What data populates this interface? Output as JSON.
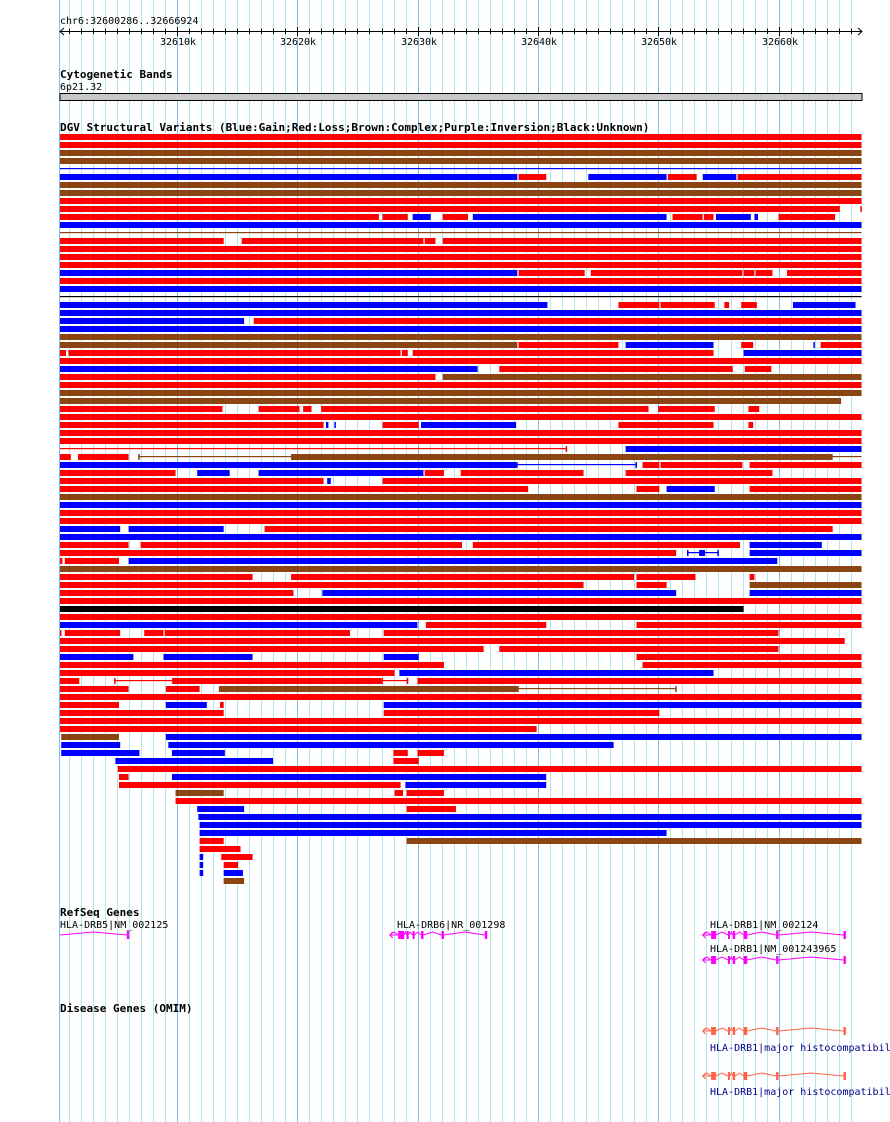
{
  "region": {
    "label": "chr6:32600286..32666924",
    "start_bp": 32600286,
    "end_bp": 32666924,
    "length_kb": 66.638
  },
  "ruler": {
    "labels": [
      {
        "kb": 32610,
        "text": "32610k"
      },
      {
        "kb": 32620,
        "text": "32620k"
      },
      {
        "kb": 32630,
        "text": "32630k"
      },
      {
        "kb": 32640,
        "text": "32640k"
      },
      {
        "kb": 32650,
        "text": "32650k"
      },
      {
        "kb": 32660,
        "text": "32660k"
      }
    ]
  },
  "cytoband": {
    "title": "Cytogenetic Bands",
    "band": "6p21.32",
    "color": "#c8c8c8"
  },
  "sv_track": {
    "title": "DGV Structural Variants (Blue:Gain;Red:Loss;Brown:Complex;Purple:Inversion;Black:Unknown)",
    "units": "kb offset from region start",
    "colors": {
      "L": "#ff0000",
      "G": "#0000ff",
      "C": "#8b4513",
      "U": "#000000",
      "I": "#800080"
    },
    "rows": [
      [
        [
          0,
          66.6,
          "L"
        ]
      ],
      [
        [
          0,
          66.6,
          "L"
        ]
      ],
      [
        [
          0,
          66.6,
          "C"
        ]
      ],
      [
        [
          0,
          66.6,
          "C"
        ]
      ],
      [
        [
          0,
          66.6,
          "Gl"
        ]
      ],
      [
        [
          0,
          38.0,
          "G"
        ],
        [
          38.1,
          40.4,
          "L"
        ],
        [
          43.9,
          50.4,
          "G"
        ],
        [
          50.5,
          52.9,
          "L"
        ],
        [
          53.4,
          56.2,
          "G"
        ],
        [
          56.3,
          66.6,
          "L"
        ]
      ],
      [
        [
          0,
          66.6,
          "C"
        ]
      ],
      [
        [
          0,
          66.6,
          "C"
        ]
      ],
      [
        [
          0,
          66.6,
          "L"
        ]
      ],
      [
        [
          0,
          64.8,
          "L"
        ],
        [
          66.5,
          66.6,
          "L"
        ]
      ],
      [
        [
          0,
          26.5,
          "L"
        ],
        [
          26.8,
          28.9,
          "L"
        ],
        [
          29.3,
          30.8,
          "G"
        ],
        [
          31.8,
          33.9,
          "L"
        ],
        [
          34.3,
          50.4,
          "G"
        ],
        [
          50.9,
          53.4,
          "L"
        ],
        [
          53.5,
          54.3,
          "L"
        ],
        [
          54.5,
          57.4,
          "G"
        ],
        [
          57.7,
          58.0,
          "G"
        ],
        [
          59.7,
          64.4,
          "L"
        ]
      ],
      [
        [
          0,
          66.6,
          "G"
        ]
      ],
      [
        [
          0,
          66.6,
          "Cl"
        ]
      ],
      [
        [
          0,
          13.6,
          "L"
        ],
        [
          15.1,
          30.2,
          "L"
        ],
        [
          30.3,
          31.2,
          "L"
        ],
        [
          31.8,
          66.6,
          "L"
        ]
      ],
      [
        [
          0,
          66.6,
          "L"
        ]
      ],
      [
        [
          0,
          66.6,
          "L"
        ]
      ],
      [
        [
          0,
          66.6,
          "L"
        ]
      ],
      [
        [
          0,
          38.0,
          "G"
        ],
        [
          38.1,
          43.6,
          "L"
        ],
        [
          44.1,
          56.7,
          "L"
        ],
        [
          56.8,
          57.7,
          "L"
        ],
        [
          57.8,
          59.2,
          "L"
        ],
        [
          60.4,
          66.6,
          "L"
        ]
      ],
      [
        [
          0,
          66.6,
          "L"
        ]
      ],
      [
        [
          0,
          66.6,
          "G"
        ]
      ],
      [
        [
          0,
          66.6,
          "Ul"
        ]
      ],
      [
        [
          0,
          40.5,
          "G"
        ],
        [
          46.4,
          49.8,
          "L"
        ],
        [
          49.9,
          54.4,
          "L"
        ],
        [
          55.2,
          55.6,
          "L"
        ],
        [
          56.6,
          57.9,
          "L"
        ],
        [
          60.9,
          66.1,
          "G"
        ]
      ],
      [
        [
          0,
          66.6,
          "G"
        ]
      ],
      [
        [
          0,
          15.3,
          "G"
        ],
        [
          16.1,
          66.6,
          "L"
        ]
      ],
      [
        [
          0,
          66.6,
          "G"
        ]
      ],
      [
        [
          0,
          66.6,
          "C"
        ]
      ],
      [
        [
          0,
          38.0,
          "C"
        ],
        [
          38.1,
          46.4,
          "L"
        ],
        [
          47.0,
          54.3,
          "G"
        ],
        [
          56.6,
          57.6,
          "L"
        ],
        [
          62.6,
          62.7,
          "G"
        ],
        [
          63.2,
          66.6,
          "L"
        ]
      ],
      [
        [
          0,
          0.5,
          "L"
        ],
        [
          0.7,
          28.3,
          "L"
        ],
        [
          28.4,
          28.9,
          "L"
        ],
        [
          29.3,
          54.3,
          "L"
        ],
        [
          56.8,
          66.6,
          "G"
        ]
      ],
      [
        [
          0,
          66.6,
          "L"
        ]
      ],
      [
        [
          0,
          34.7,
          "G"
        ],
        [
          36.5,
          55.9,
          "L"
        ],
        [
          56.9,
          59.1,
          "L"
        ]
      ],
      [
        [
          0,
          31.2,
          "L"
        ],
        [
          31.8,
          66.6,
          "C"
        ]
      ],
      [
        [
          0,
          66.6,
          "L"
        ]
      ],
      [
        [
          0,
          66.6,
          "C"
        ]
      ],
      [
        [
          0,
          64.9,
          "C"
        ]
      ],
      [
        [
          0,
          13.5,
          "L"
        ],
        [
          16.5,
          19.9,
          "L"
        ],
        [
          20.2,
          20.9,
          "L"
        ],
        [
          21.7,
          48.9,
          "L"
        ],
        [
          49.7,
          54.4,
          "L"
        ],
        [
          57.2,
          58.1,
          "L"
        ]
      ],
      [
        [
          0,
          66.6,
          "L"
        ]
      ],
      [
        [
          0,
          21.9,
          "L"
        ],
        [
          22.1,
          22.3,
          "G"
        ],
        [
          22.8,
          22.9,
          "G"
        ],
        [
          26.8,
          29.8,
          "L"
        ],
        [
          30.0,
          37.9,
          "G"
        ],
        [
          46.4,
          54.3,
          "L"
        ],
        [
          57.2,
          57.6,
          "L"
        ]
      ],
      [
        [
          0,
          66.6,
          "L"
        ]
      ],
      [
        [
          0,
          66.6,
          "L"
        ]
      ],
      [
        [
          0,
          42.1,
          "Ll"
        ],
        [
          47.0,
          66.6,
          "G"
        ]
      ],
      [
        [
          0,
          0.9,
          "L"
        ],
        [
          1.5,
          5.7,
          "L"
        ],
        [
          6.5,
          66.6,
          "Cl"
        ],
        [
          19.2,
          64.2,
          "C"
        ]
      ],
      [
        [
          0,
          37.9,
          "G"
        ],
        [
          37.9,
          47.9,
          "Gl"
        ],
        [
          48.4,
          49.8,
          "L"
        ],
        [
          49.9,
          56.7,
          "L"
        ],
        [
          57.3,
          66.6,
          "L"
        ]
      ],
      [
        [
          0,
          9.6,
          "L"
        ],
        [
          11.4,
          14.1,
          "G"
        ],
        [
          16.5,
          30.2,
          "G"
        ],
        [
          30.3,
          31.9,
          "L"
        ],
        [
          33.3,
          43.5,
          "L"
        ],
        [
          47.0,
          59.2,
          "L"
        ]
      ],
      [
        [
          0,
          21.9,
          "L"
        ],
        [
          22.2,
          22.5,
          "G"
        ],
        [
          26.8,
          66.6,
          "L"
        ]
      ],
      [
        [
          0,
          38.9,
          "L"
        ],
        [
          47.9,
          49.8,
          "L"
        ],
        [
          50.4,
          54.4,
          "G"
        ],
        [
          57.3,
          66.6,
          "L"
        ]
      ],
      [
        [
          0,
          66.6,
          "C"
        ]
      ],
      [
        [
          0,
          66.6,
          "G"
        ]
      ],
      [
        [
          0,
          66.6,
          "L"
        ]
      ],
      [
        [
          0,
          66.6,
          "L"
        ]
      ],
      [
        [
          0,
          5.0,
          "G"
        ],
        [
          5.7,
          13.6,
          "G"
        ],
        [
          17.0,
          64.2,
          "L"
        ]
      ],
      [
        [
          0,
          66.6,
          "G"
        ]
      ],
      [
        [
          0,
          5.7,
          "L"
        ],
        [
          6.7,
          33.4,
          "L"
        ],
        [
          34.3,
          56.5,
          "L"
        ],
        [
          57.3,
          63.3,
          "G"
        ]
      ],
      [
        [
          0,
          51.2,
          "L"
        ],
        [
          52.1,
          54.7,
          "Gl"
        ],
        [
          53.1,
          53.6,
          "G"
        ],
        [
          57.3,
          66.6,
          "G"
        ]
      ],
      [
        [
          0,
          0.2,
          "L"
        ],
        [
          0.4,
          4.9,
          "L"
        ],
        [
          5.7,
          59.6,
          "G"
        ]
      ],
      [
        [
          0,
          66.6,
          "C"
        ]
      ],
      [
        [
          0,
          16.0,
          "L"
        ],
        [
          19.2,
          47.7,
          "L"
        ],
        [
          47.9,
          52.8,
          "L"
        ],
        [
          57.3,
          57.7,
          "L"
        ]
      ],
      [
        [
          0,
          43.5,
          "L"
        ],
        [
          47.9,
          50.4,
          "L"
        ],
        [
          57.3,
          66.6,
          "C"
        ]
      ],
      [
        [
          0,
          19.4,
          "L"
        ],
        [
          21.8,
          51.2,
          "G"
        ],
        [
          57.3,
          66.6,
          "G"
        ]
      ],
      [
        [
          0,
          66.6,
          "L"
        ]
      ],
      [
        [
          0,
          56.8,
          "U"
        ]
      ],
      [
        [
          0,
          66.6,
          "L"
        ]
      ],
      [
        [
          0,
          29.7,
          "G"
        ],
        [
          30.4,
          40.4,
          "L"
        ],
        [
          47.9,
          66.6,
          "L"
        ]
      ],
      [
        [
          0,
          0.1,
          "L"
        ],
        [
          0.4,
          5.0,
          "L"
        ],
        [
          7.0,
          8.6,
          "L"
        ],
        [
          8.7,
          24.1,
          "L"
        ],
        [
          26.9,
          59.7,
          "L"
        ]
      ],
      [
        [
          0,
          65.2,
          "L"
        ]
      ],
      [
        [
          0,
          35.2,
          "L"
        ],
        [
          36.5,
          59.7,
          "L"
        ]
      ],
      [
        [
          0,
          6.1,
          "G"
        ],
        [
          8.6,
          16.0,
          "G"
        ],
        [
          26.9,
          29.8,
          "G"
        ],
        [
          47.9,
          66.6,
          "L"
        ]
      ],
      [
        [
          0,
          31.9,
          "L"
        ],
        [
          48.4,
          66.6,
          "L"
        ]
      ],
      [
        [
          0,
          27.8,
          "L"
        ],
        [
          28.2,
          54.3,
          "G"
        ]
      ],
      [
        [
          0,
          1.6,
          "L"
        ],
        [
          4.5,
          9.4,
          "Ll"
        ],
        [
          9.4,
          26.7,
          "L"
        ],
        [
          26.7,
          28.9,
          "Ll"
        ],
        [
          29.7,
          66.6,
          "L"
        ]
      ],
      [
        [
          0,
          5.7,
          "L"
        ],
        [
          8.8,
          11.6,
          "L"
        ],
        [
          13.2,
          38.0,
          "C"
        ],
        [
          38.0,
          51.2,
          "Cl"
        ]
      ],
      [
        [
          0,
          66.6,
          "L"
        ]
      ],
      [
        [
          0,
          4.9,
          "L"
        ],
        [
          8.8,
          12.2,
          "G"
        ],
        [
          13.3,
          13.6,
          "L"
        ],
        [
          26.9,
          66.6,
          "G"
        ]
      ],
      [
        [
          0,
          13.6,
          "L"
        ],
        [
          26.9,
          49.8,
          "L"
        ]
      ],
      [
        [
          0,
          66.6,
          "L"
        ]
      ],
      [
        [
          0,
          39.6,
          "L"
        ]
      ],
      [
        [
          0.1,
          4.9,
          "C"
        ],
        [
          8.8,
          66.6,
          "G"
        ]
      ],
      [
        [
          0.1,
          5.0,
          "G"
        ],
        [
          9.0,
          46.0,
          "G"
        ]
      ],
      [
        [
          0.1,
          6.6,
          "G"
        ],
        [
          9.3,
          13.7,
          "G"
        ],
        [
          27.7,
          28.9,
          "L"
        ],
        [
          29.7,
          31.9,
          "L"
        ]
      ],
      [
        [
          4.6,
          17.7,
          "G"
        ],
        [
          27.7,
          29.8,
          "L"
        ]
      ],
      [
        [
          4.8,
          66.6,
          "L"
        ]
      ],
      [
        [
          4.9,
          5.7,
          "L"
        ],
        [
          9.3,
          40.4,
          "G"
        ]
      ],
      [
        [
          4.9,
          28.3,
          "L"
        ],
        [
          28.7,
          40.4,
          "G"
        ]
      ],
      [
        [
          9.6,
          13.6,
          "C"
        ],
        [
          27.8,
          28.5,
          "L"
        ],
        [
          28.8,
          31.9,
          "L"
        ]
      ],
      [
        [
          9.6,
          66.6,
          "L"
        ]
      ],
      [
        [
          11.4,
          15.3,
          "G"
        ],
        [
          28.8,
          32.9,
          "L"
        ]
      ],
      [
        [
          11.5,
          66.6,
          "G"
        ]
      ],
      [
        [
          11.6,
          66.6,
          "G"
        ]
      ],
      [
        [
          11.6,
          50.4,
          "G"
        ]
      ],
      [
        [
          11.6,
          13.6,
          "L"
        ],
        [
          28.8,
          66.6,
          "C"
        ]
      ],
      [
        [
          11.6,
          15.0,
          "L"
        ]
      ],
      [
        [
          11.6,
          11.9,
          "G"
        ],
        [
          13.4,
          16.0,
          "L"
        ]
      ],
      [
        [
          11.6,
          11.9,
          "G"
        ],
        [
          13.6,
          14.8,
          "L"
        ]
      ],
      [
        [
          11.6,
          11.9,
          "G"
        ],
        [
          13.6,
          15.2,
          "G"
        ]
      ],
      [
        [
          13.6,
          15.3,
          "C"
        ]
      ]
    ]
  },
  "refseq": {
    "title": "RefSeq Genes",
    "color": "#ff00ff",
    "genes": [
      {
        "label": "HLA-DRB5|NM_002125",
        "start": 0,
        "end": 5.7,
        "arrow": false,
        "exons": [
          [
            5.55,
            5.75
          ]
        ]
      },
      {
        "label": "HLA-DRB6|NR_001298",
        "start": 27.4,
        "end": 35.5,
        "arrow": true,
        "exons": [
          [
            28.1,
            28.6
          ],
          [
            28.8,
            28.9
          ],
          [
            29.3,
            29.45
          ],
          [
            30.0,
            30.2
          ],
          [
            31.7,
            31.9
          ],
          [
            35.3,
            35.5
          ]
        ]
      },
      {
        "label": "HLA-DRB1|NM_002124",
        "start": 53.4,
        "end": 65.3,
        "arrow": true,
        "exons": [
          [
            54.1,
            54.5
          ],
          [
            55.5,
            55.65
          ],
          [
            55.9,
            56.1
          ],
          [
            56.8,
            57.1
          ],
          [
            59.5,
            59.7
          ],
          [
            65.1,
            65.3
          ]
        ]
      },
      {
        "label": "HLA-DRB1|NM_001243965",
        "start": 53.4,
        "end": 65.3,
        "arrow": true,
        "exons": [
          [
            54.1,
            54.5
          ],
          [
            55.5,
            55.65
          ],
          [
            55.9,
            56.1
          ],
          [
            56.8,
            57.1
          ],
          [
            59.5,
            59.7
          ],
          [
            65.1,
            65.3
          ]
        ]
      }
    ]
  },
  "omim": {
    "title": "Disease Genes (OMIM)",
    "color": "#ff6347",
    "label_color": "#00008b",
    "genes": [
      {
        "label": "HLA-DRB1|major histocompatibil",
        "start": 53.4,
        "end": 65.3,
        "arrow": true,
        "exons": [
          [
            54.1,
            54.5
          ],
          [
            55.5,
            55.65
          ],
          [
            55.9,
            56.1
          ],
          [
            56.8,
            57.1
          ],
          [
            59.5,
            59.7
          ],
          [
            65.1,
            65.3
          ]
        ]
      },
      {
        "label": "HLA-DRB1|major histocompatibil",
        "start": 53.4,
        "end": 65.3,
        "arrow": true,
        "exons": [
          [
            54.1,
            54.5
          ],
          [
            55.5,
            55.65
          ],
          [
            55.9,
            56.1
          ],
          [
            56.8,
            57.1
          ],
          [
            59.5,
            59.7
          ],
          [
            65.1,
            65.3
          ]
        ]
      }
    ]
  }
}
